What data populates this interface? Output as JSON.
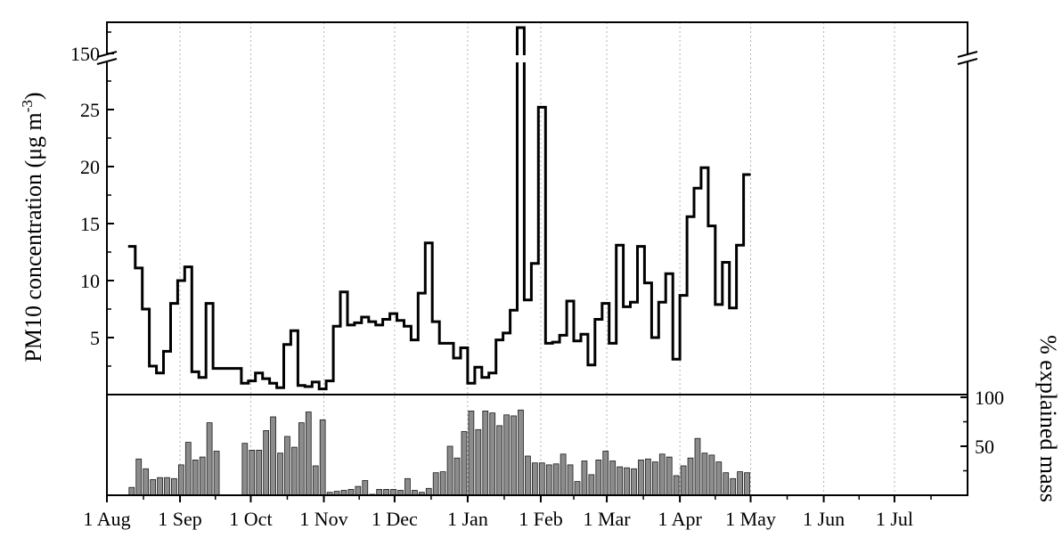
{
  "chart_data": [
    {
      "type": "line",
      "step": true,
      "ylabel_main": "PM10 concentration (μg m",
      "ylabel_sup": "-3",
      "ylabel_close": ")",
      "yticks": [
        5,
        10,
        15,
        20,
        25
      ],
      "break_tick": 150,
      "y_break": true,
      "ylim_lower": [
        0,
        28
      ],
      "ylim_upper": [
        145,
        155
      ],
      "x_ticks": [
        "1 Aug",
        "1 Sep",
        "1 Oct",
        "1 Nov",
        "1 Dec",
        "1 Jan",
        "1 Feb",
        "1 Mar",
        "1 Apr",
        "1 May",
        "1 Jun",
        "1 Jul"
      ],
      "x_tick_days": [
        0,
        31,
        61,
        92,
        122,
        153,
        184,
        212,
        243,
        273,
        304,
        334
      ],
      "grid": "vertical dotted at month ticks",
      "series": [
        {
          "values": [
            {
              "x": 9,
              "y": 13.0
            },
            {
              "x": 12,
              "y": 11.1
            },
            {
              "x": 15,
              "y": 7.5
            },
            {
              "x": 18,
              "y": 2.5
            },
            {
              "x": 21,
              "y": 1.9
            },
            {
              "x": 24,
              "y": 3.8
            },
            {
              "x": 27,
              "y": 8.0
            },
            {
              "x": 30,
              "y": 10.0
            },
            {
              "x": 33,
              "y": 11.2
            },
            {
              "x": 36,
              "y": 2.0
            },
            {
              "x": 39,
              "y": 1.5
            },
            {
              "x": 42,
              "y": 8.0
            },
            {
              "x": 45,
              "y": 2.3
            },
            {
              "x": 57,
              "y": 1.0
            },
            {
              "x": 60,
              "y": 1.2
            },
            {
              "x": 63,
              "y": 1.9
            },
            {
              "x": 66,
              "y": 1.4
            },
            {
              "x": 69,
              "y": 1.0
            },
            {
              "x": 72,
              "y": 0.6
            },
            {
              "x": 75,
              "y": 4.4
            },
            {
              "x": 78,
              "y": 5.6
            },
            {
              "x": 81,
              "y": 0.8
            },
            {
              "x": 84,
              "y": 0.7
            },
            {
              "x": 87,
              "y": 1.1
            },
            {
              "x": 90,
              "y": 0.5
            },
            {
              "x": 93,
              "y": 1.2
            },
            {
              "x": 96,
              "y": 6.0
            },
            {
              "x": 99,
              "y": 9.0
            },
            {
              "x": 102,
              "y": 6.1
            },
            {
              "x": 105,
              "y": 6.3
            },
            {
              "x": 108,
              "y": 6.8
            },
            {
              "x": 111,
              "y": 6.4
            },
            {
              "x": 114,
              "y": 6.1
            },
            {
              "x": 117,
              "y": 6.6
            },
            {
              "x": 120,
              "y": 7.1
            },
            {
              "x": 123,
              "y": 6.5
            },
            {
              "x": 126,
              "y": 6.0
            },
            {
              "x": 129,
              "y": 4.8
            },
            {
              "x": 132,
              "y": 8.9
            },
            {
              "x": 135,
              "y": 13.3
            },
            {
              "x": 138,
              "y": 6.4
            },
            {
              "x": 141,
              "y": 4.5
            },
            {
              "x": 147,
              "y": 3.2
            },
            {
              "x": 150,
              "y": 4.1
            },
            {
              "x": 153,
              "y": 1.0
            },
            {
              "x": 156,
              "y": 2.4
            },
            {
              "x": 159,
              "y": 1.5
            },
            {
              "x": 162,
              "y": 1.9
            },
            {
              "x": 165,
              "y": 4.8
            },
            {
              "x": 168,
              "y": 5.4
            },
            {
              "x": 171,
              "y": 7.4
            },
            {
              "x": 174,
              "y": 155.0
            },
            {
              "x": 177,
              "y": 8.3
            },
            {
              "x": 180,
              "y": 11.5
            },
            {
              "x": 183,
              "y": 25.2
            },
            {
              "x": 186,
              "y": 4.5
            },
            {
              "x": 189,
              "y": 4.6
            },
            {
              "x": 192,
              "y": 5.2
            },
            {
              "x": 195,
              "y": 8.2
            },
            {
              "x": 198,
              "y": 4.7
            },
            {
              "x": 201,
              "y": 5.3
            },
            {
              "x": 204,
              "y": 2.6
            },
            {
              "x": 207,
              "y": 6.6
            },
            {
              "x": 210,
              "y": 8.0
            },
            {
              "x": 213,
              "y": 4.5
            },
            {
              "x": 216,
              "y": 13.1
            },
            {
              "x": 219,
              "y": 7.7
            },
            {
              "x": 222,
              "y": 8.1
            },
            {
              "x": 225,
              "y": 13.0
            },
            {
              "x": 228,
              "y": 9.8
            },
            {
              "x": 231,
              "y": 5.0
            },
            {
              "x": 234,
              "y": 8.1
            },
            {
              "x": 237,
              "y": 10.6
            },
            {
              "x": 240,
              "y": 3.1
            },
            {
              "x": 243,
              "y": 8.7
            },
            {
              "x": 246,
              "y": 15.6
            },
            {
              "x": 249,
              "y": 18.1
            },
            {
              "x": 252,
              "y": 19.9
            },
            {
              "x": 255,
              "y": 14.8
            },
            {
              "x": 258,
              "y": 7.9
            },
            {
              "x": 261,
              "y": 11.6
            },
            {
              "x": 264,
              "y": 7.6
            },
            {
              "x": 267,
              "y": 13.1
            },
            {
              "x": 270,
              "y": 19.3
            }
          ]
        }
      ]
    },
    {
      "type": "bar",
      "ylabel": "% explained mass",
      "yticks": [
        50,
        100
      ],
      "ylim": [
        0,
        100
      ],
      "bar_width_days": 3,
      "values": [
        {
          "x": 9,
          "y": 8
        },
        {
          "x": 12,
          "y": 37
        },
        {
          "x": 15,
          "y": 27
        },
        {
          "x": 18,
          "y": 16
        },
        {
          "x": 21,
          "y": 18
        },
        {
          "x": 24,
          "y": 18
        },
        {
          "x": 27,
          "y": 17
        },
        {
          "x": 30,
          "y": 31
        },
        {
          "x": 33,
          "y": 54
        },
        {
          "x": 36,
          "y": 36
        },
        {
          "x": 39,
          "y": 39
        },
        {
          "x": 42,
          "y": 74
        },
        {
          "x": 45,
          "y": 45
        },
        {
          "x": 57,
          "y": 53
        },
        {
          "x": 60,
          "y": 46
        },
        {
          "x": 63,
          "y": 46
        },
        {
          "x": 66,
          "y": 66
        },
        {
          "x": 69,
          "y": 80
        },
        {
          "x": 72,
          "y": 43
        },
        {
          "x": 75,
          "y": 60
        },
        {
          "x": 78,
          "y": 49
        },
        {
          "x": 81,
          "y": 74
        },
        {
          "x": 84,
          "y": 85
        },
        {
          "x": 87,
          "y": 30
        },
        {
          "x": 90,
          "y": 77
        },
        {
          "x": 93,
          "y": 3
        },
        {
          "x": 96,
          "y": 4
        },
        {
          "x": 99,
          "y": 5
        },
        {
          "x": 102,
          "y": 6
        },
        {
          "x": 105,
          "y": 9
        },
        {
          "x": 108,
          "y": 15
        },
        {
          "x": 111,
          "y": 1
        },
        {
          "x": 114,
          "y": 6
        },
        {
          "x": 117,
          "y": 6
        },
        {
          "x": 120,
          "y": 6
        },
        {
          "x": 123,
          "y": 5
        },
        {
          "x": 126,
          "y": 17
        },
        {
          "x": 129,
          "y": 5
        },
        {
          "x": 132,
          "y": 3
        },
        {
          "x": 135,
          "y": 7
        },
        {
          "x": 138,
          "y": 23
        },
        {
          "x": 141,
          "y": 24
        },
        {
          "x": 144,
          "y": 50
        },
        {
          "x": 147,
          "y": 38
        },
        {
          "x": 150,
          "y": 65
        },
        {
          "x": 153,
          "y": 86
        },
        {
          "x": 156,
          "y": 67
        },
        {
          "x": 159,
          "y": 86
        },
        {
          "x": 162,
          "y": 84
        },
        {
          "x": 165,
          "y": 71
        },
        {
          "x": 168,
          "y": 82
        },
        {
          "x": 171,
          "y": 81
        },
        {
          "x": 174,
          "y": 87
        },
        {
          "x": 177,
          "y": 40
        },
        {
          "x": 180,
          "y": 33
        },
        {
          "x": 183,
          "y": 33
        },
        {
          "x": 186,
          "y": 31
        },
        {
          "x": 189,
          "y": 32
        },
        {
          "x": 192,
          "y": 42
        },
        {
          "x": 195,
          "y": 31
        },
        {
          "x": 198,
          "y": 14
        },
        {
          "x": 201,
          "y": 35
        },
        {
          "x": 204,
          "y": 21
        },
        {
          "x": 207,
          "y": 36
        },
        {
          "x": 210,
          "y": 45
        },
        {
          "x": 213,
          "y": 35
        },
        {
          "x": 216,
          "y": 29
        },
        {
          "x": 219,
          "y": 28
        },
        {
          "x": 222,
          "y": 27
        },
        {
          "x": 225,
          "y": 36
        },
        {
          "x": 228,
          "y": 37
        },
        {
          "x": 231,
          "y": 34
        },
        {
          "x": 234,
          "y": 42
        },
        {
          "x": 237,
          "y": 39
        },
        {
          "x": 240,
          "y": 20
        },
        {
          "x": 243,
          "y": 30
        },
        {
          "x": 246,
          "y": 38
        },
        {
          "x": 249,
          "y": 58
        },
        {
          "x": 252,
          "y": 43
        },
        {
          "x": 255,
          "y": 41
        },
        {
          "x": 258,
          "y": 34
        },
        {
          "x": 261,
          "y": 23
        },
        {
          "x": 264,
          "y": 17
        },
        {
          "x": 267,
          "y": 24
        },
        {
          "x": 270,
          "y": 23
        }
      ]
    }
  ],
  "colors": {
    "line": "#000000",
    "bar_fill": "#8c8c8c",
    "bar_edge": "#1a1a1a",
    "grid": "#b4b4b4"
  }
}
